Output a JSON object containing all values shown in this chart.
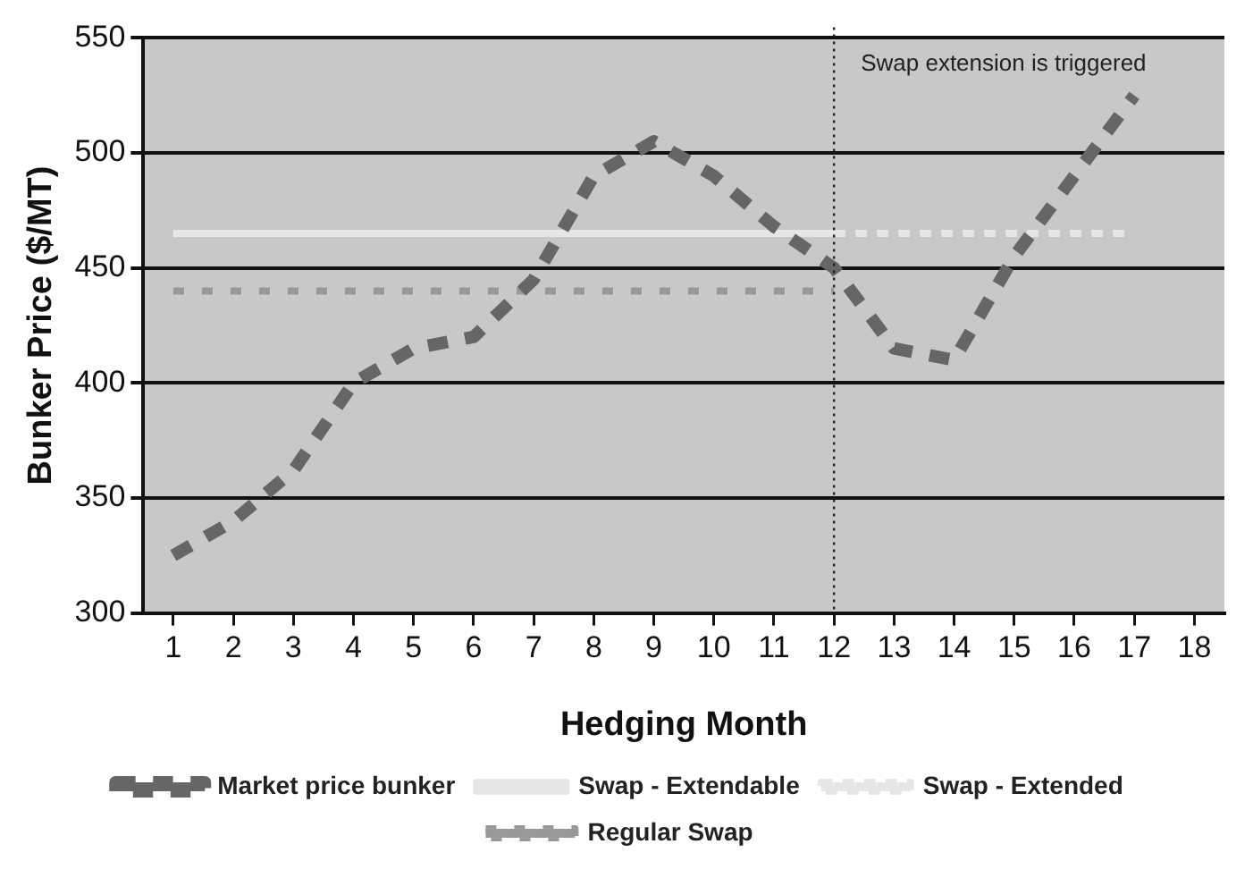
{
  "chart_data": {
    "type": "line",
    "xlabel": "Hedging Month",
    "ylabel": "Bunker Price ($/MT)",
    "xlim": [
      0.5,
      18.5
    ],
    "xticks": [
      1,
      2,
      3,
      4,
      5,
      6,
      7,
      8,
      9,
      10,
      11,
      12,
      13,
      14,
      15,
      16,
      17,
      18
    ],
    "ylim": [
      300,
      550
    ],
    "yticks": [
      300,
      350,
      400,
      450,
      500,
      550
    ],
    "grid": "y",
    "legend": "bottom",
    "marker": "none",
    "ref_lines": [
      {
        "axis": "x",
        "value": 12,
        "label": "Swap extension is triggered",
        "color": "#222222",
        "line_style": "dotted"
      }
    ],
    "series": [
      {
        "name": "Market price bunker",
        "color": "#666666",
        "line_style": "dashed",
        "x": [
          1,
          2,
          3,
          4,
          5,
          6,
          7,
          8,
          9,
          10,
          11,
          12,
          13,
          14,
          15,
          16,
          17
        ],
        "values": [
          325,
          340,
          362,
          400,
          415,
          420,
          445,
          490,
          505,
          490,
          468,
          450,
          415,
          410,
          455,
          490,
          525
        ]
      },
      {
        "name": "Swap - Extendable",
        "color": "#e6e6e6",
        "line_style": "solid",
        "x": [
          1,
          12
        ],
        "values": [
          465,
          465
        ]
      },
      {
        "name": "Swap - Extended",
        "color": "#e6e6e6",
        "line_style": "dashed",
        "x": [
          12,
          17
        ],
        "values": [
          465,
          465
        ]
      },
      {
        "name": "Regular Swap",
        "color": "#999999",
        "line_style": "dotted",
        "x": [
          1,
          12
        ],
        "values": [
          440,
          440
        ]
      }
    ]
  }
}
